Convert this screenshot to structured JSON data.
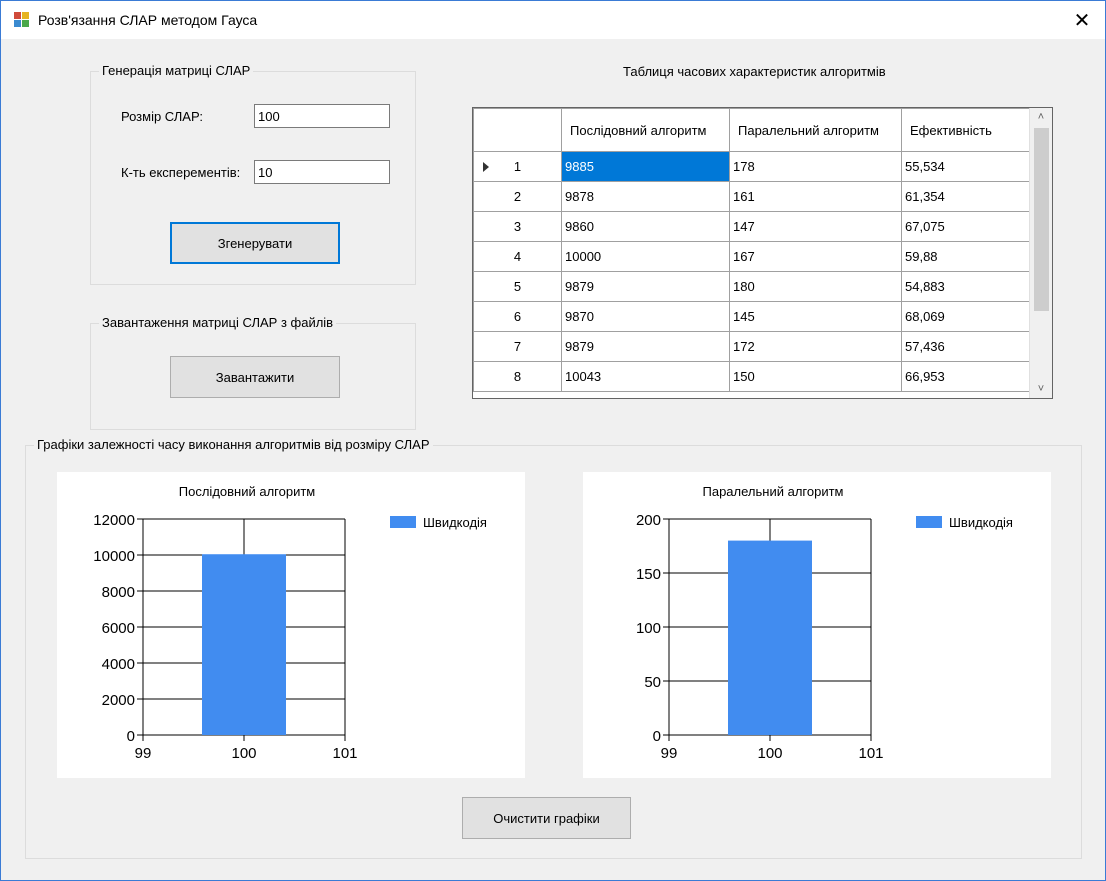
{
  "window": {
    "title": "Розв'язання СЛАР методом Гауса",
    "close_glyph": "✕"
  },
  "generation": {
    "legend": "Генерація матриці СЛАР",
    "size_label": "Розмір СЛАР:",
    "size_value": "100",
    "experiments_label": "К-ть експерементів:",
    "experiments_value": "10",
    "generate_button": "Згенерувати"
  },
  "loading": {
    "legend": "Завантаження матриці СЛАР з файлів",
    "load_button": "Завантажити"
  },
  "table": {
    "caption": "Таблиця часових характеристик алгоритмів",
    "headers": [
      "Послідовний алгоритм",
      "Паралельний алгоритм",
      "Ефективність"
    ],
    "rows": [
      [
        "1",
        "9885",
        "178",
        "55,534"
      ],
      [
        "2",
        "9878",
        "161",
        "61,354"
      ],
      [
        "3",
        "9860",
        "147",
        "67,075"
      ],
      [
        "4",
        "10000",
        "167",
        "59,88"
      ],
      [
        "5",
        "9879",
        "180",
        "54,883"
      ],
      [
        "6",
        "9870",
        "145",
        "68,069"
      ],
      [
        "7",
        "9879",
        "172",
        "57,436"
      ],
      [
        "8",
        "10043",
        "150",
        "66,953"
      ]
    ],
    "scroll_up_icon": "˄",
    "scroll_down_icon": "˅"
  },
  "charts_group": {
    "legend": "Графіки залежності часу виконання алгоритмів від розміру СЛАР",
    "clear_button": "Очистити графіки"
  },
  "chart_data": [
    {
      "type": "bar",
      "title": "Послідовний алгоритм",
      "x": [
        100
      ],
      "xlim": [
        99,
        101
      ],
      "xticks": [
        "99",
        "100",
        "101"
      ],
      "ylim": [
        0,
        12000
      ],
      "yticks": [
        "0",
        "2000",
        "4000",
        "6000",
        "8000",
        "10000",
        "12000"
      ],
      "series": [
        {
          "name": "Швидкодія",
          "values": [
            10043
          ]
        }
      ],
      "legend_position": "top-right",
      "grid": true,
      "color": "#418cf0"
    },
    {
      "type": "bar",
      "title": "Паралельний алгоритм",
      "x": [
        100
      ],
      "xlim": [
        99,
        101
      ],
      "xticks": [
        "99",
        "100",
        "101"
      ],
      "ylim": [
        0,
        200
      ],
      "yticks": [
        "0",
        "50",
        "100",
        "150",
        "200"
      ],
      "series": [
        {
          "name": "Швидкодія",
          "values": [
            180
          ]
        }
      ],
      "legend_position": "top-right",
      "grid": true,
      "color": "#418cf0"
    }
  ]
}
